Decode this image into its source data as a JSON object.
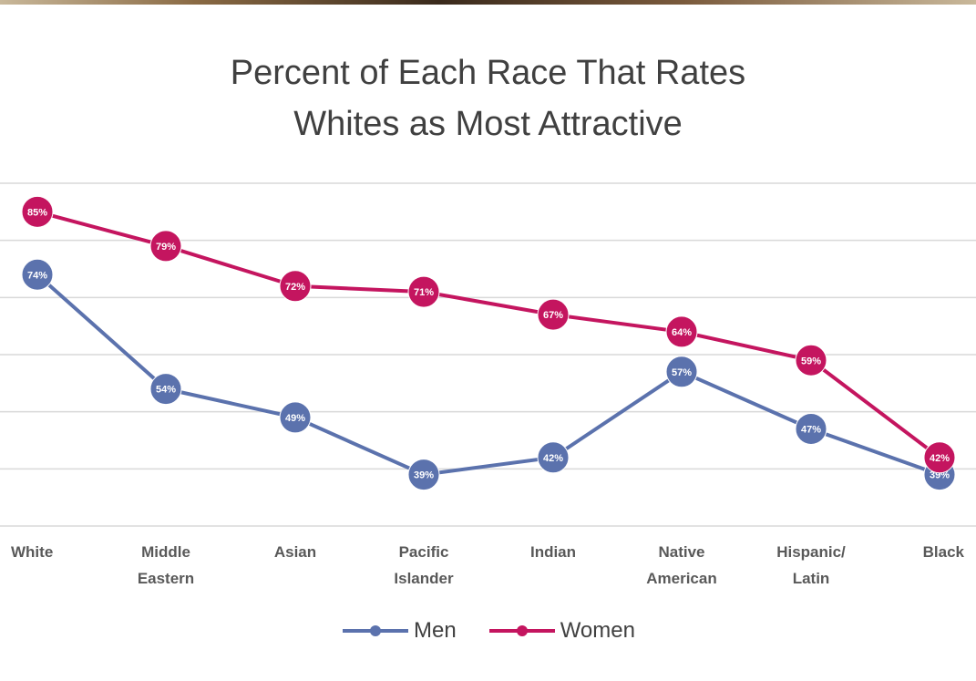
{
  "chart_data": {
    "type": "line",
    "title_lines": [
      "Percent of Each Race That Rates",
      "Whites as Most Attractive"
    ],
    "categories": [
      [
        "White"
      ],
      [
        "Middle",
        "Eastern"
      ],
      [
        "Asian"
      ],
      [
        "Pacific",
        "Islander"
      ],
      [
        "Indian"
      ],
      [
        "Native",
        "American"
      ],
      [
        "Hispanic/",
        "Latin"
      ],
      [
        "Black"
      ]
    ],
    "series": [
      {
        "name": "Men",
        "color": "#5b72ad",
        "values": [
          74,
          54,
          49,
          39,
          42,
          57,
          47,
          39
        ]
      },
      {
        "name": "Women",
        "color": "#c4155f",
        "values": [
          85,
          79,
          72,
          71,
          67,
          64,
          59,
          42
        ]
      }
    ],
    "ylim": [
      30,
      90
    ],
    "grid": true,
    "legend_position": "bottom"
  }
}
